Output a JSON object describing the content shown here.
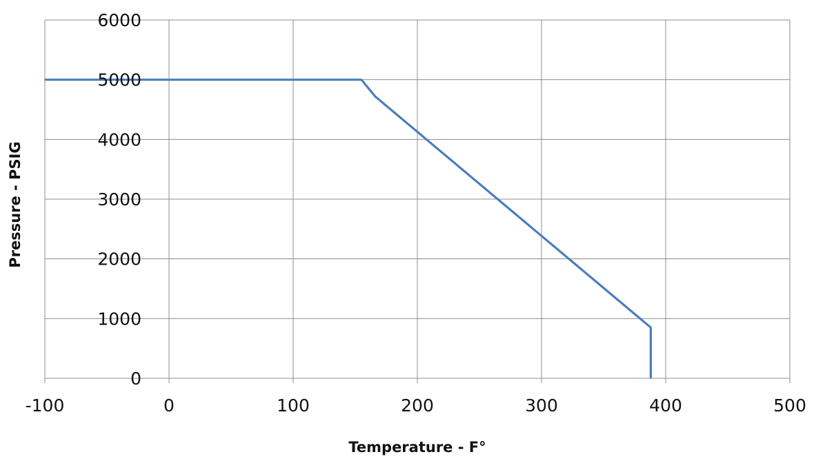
{
  "chart_data": {
    "type": "line",
    "title": "",
    "xlabel": "Temperature - F°",
    "ylabel": "Pressure - PSIG",
    "xlim": [
      -100,
      500
    ],
    "ylim": [
      0,
      6000
    ],
    "x_ticks": [
      -100,
      0,
      100,
      200,
      300,
      400,
      500
    ],
    "y_ticks": [
      0,
      1000,
      2000,
      3000,
      4000,
      5000,
      6000
    ],
    "grid": true,
    "legend": "none",
    "series": [
      {
        "color": "#4a7ebb",
        "points": [
          [
            -100,
            5000
          ],
          [
            155,
            5000
          ],
          [
            166,
            4720
          ],
          [
            388,
            850
          ],
          [
            388,
            0
          ]
        ]
      }
    ]
  }
}
